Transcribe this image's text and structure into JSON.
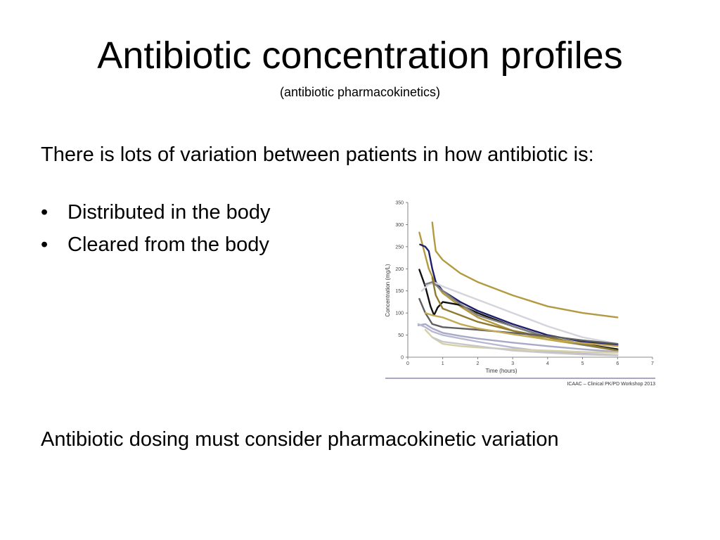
{
  "slide": {
    "title": "Antibiotic concentration profiles",
    "subtitle": "(antibiotic pharmacokinetics)",
    "intro": "There is lots of variation between patients in how antibiotic is:",
    "bullets": [
      "Distributed in the body",
      "Cleared from the body"
    ],
    "bullet_glyph": "•",
    "closing": "Antibiotic dosing must consider pharmacokinetic variation"
  },
  "chart_data": {
    "type": "line",
    "xlabel": "Time (hours)",
    "ylabel": "Concentration (mg/L)",
    "xlim": [
      0,
      7
    ],
    "ylim": [
      0,
      350
    ],
    "xticks": [
      0,
      1,
      2,
      3,
      4,
      5,
      6,
      7
    ],
    "yticks": [
      0,
      50,
      100,
      150,
      200,
      250,
      300,
      350
    ],
    "grid": false,
    "source_note": "ICAAC – Clinical PK/PD Workshop 2013",
    "series": [
      {
        "color": "#b39a3f",
        "x": [
          0.7,
          0.75,
          0.8,
          1,
          1.5,
          2,
          3,
          4,
          5,
          6
        ],
        "y": [
          305,
          270,
          240,
          220,
          190,
          170,
          140,
          115,
          100,
          90
        ]
      },
      {
        "color": "#b39a3f",
        "x": [
          0.33,
          0.45,
          0.6,
          0.8,
          1,
          1.5,
          2,
          3,
          4,
          5,
          6
        ],
        "y": [
          282,
          245,
          200,
          165,
          145,
          115,
          90,
          60,
          40,
          28,
          18
        ]
      },
      {
        "color": "#1f1f6b",
        "x": [
          0.35,
          0.5,
          0.6,
          0.7,
          0.8,
          1,
          1.5,
          2,
          3,
          4,
          5,
          6
        ],
        "y": [
          255,
          250,
          240,
          200,
          170,
          150,
          125,
          105,
          75,
          50,
          35,
          28
        ]
      },
      {
        "color": "#111111",
        "x": [
          0.33,
          0.5,
          0.65,
          0.75,
          0.85,
          1,
          1.5,
          2,
          3,
          4,
          5,
          6
        ],
        "y": [
          198,
          160,
          115,
          95,
          112,
          125,
          118,
          100,
          70,
          45,
          30,
          18
        ]
      },
      {
        "color": "#d4d4dc",
        "x": [
          0.4,
          0.6,
          0.8,
          1,
          2,
          3,
          4,
          5,
          6
        ],
        "y": [
          150,
          165,
          168,
          160,
          130,
          100,
          70,
          45,
          30
        ]
      },
      {
        "color": "#7f7f7f",
        "x": [
          0.5,
          0.7,
          1,
          1.5,
          2,
          3,
          4,
          5,
          6
        ],
        "y": [
          165,
          170,
          150,
          120,
          95,
          70,
          45,
          28,
          15
        ]
      },
      {
        "color": "#8f7a2f",
        "x": [
          0.7,
          0.8,
          1,
          1.5,
          2,
          3,
          4,
          5,
          6
        ],
        "y": [
          180,
          140,
          110,
          95,
          80,
          60,
          45,
          30,
          15
        ]
      },
      {
        "color": "#5f5f5f",
        "x": [
          0.33,
          0.5,
          0.7,
          1,
          1.5,
          2,
          3,
          4,
          5,
          6
        ],
        "y": [
          132,
          100,
          75,
          68,
          65,
          62,
          55,
          48,
          38,
          30
        ]
      },
      {
        "color": "#c2aa55",
        "x": [
          0.5,
          0.7,
          1,
          1.5,
          2,
          3,
          4,
          5,
          6
        ],
        "y": [
          100,
          95,
          90,
          75,
          65,
          52,
          40,
          32,
          25
        ]
      },
      {
        "color": "#a8a8c8",
        "x": [
          0.3,
          0.5,
          0.7,
          1,
          1.5,
          2,
          3,
          4,
          5,
          6
        ],
        "y": [
          72,
          75,
          65,
          55,
          48,
          42,
          33,
          25,
          18,
          12
        ]
      },
      {
        "color": "#b8b8d0",
        "x": [
          0.3,
          0.5,
          0.7,
          1,
          2,
          3,
          4,
          5,
          6
        ],
        "y": [
          75,
          68,
          58,
          50,
          35,
          22,
          12,
          8,
          5
        ]
      },
      {
        "color": "#d6cfa8",
        "x": [
          0.5,
          0.7,
          1,
          1.5,
          2,
          3,
          4,
          5,
          6
        ],
        "y": [
          62,
          45,
          30,
          25,
          22,
          18,
          15,
          12,
          10
        ]
      },
      {
        "color": "#c8c8c8",
        "x": [
          0.7,
          1,
          2,
          3,
          4,
          5,
          6
        ],
        "y": [
          45,
          35,
          25,
          15,
          10,
          6,
          4
        ]
      }
    ]
  }
}
